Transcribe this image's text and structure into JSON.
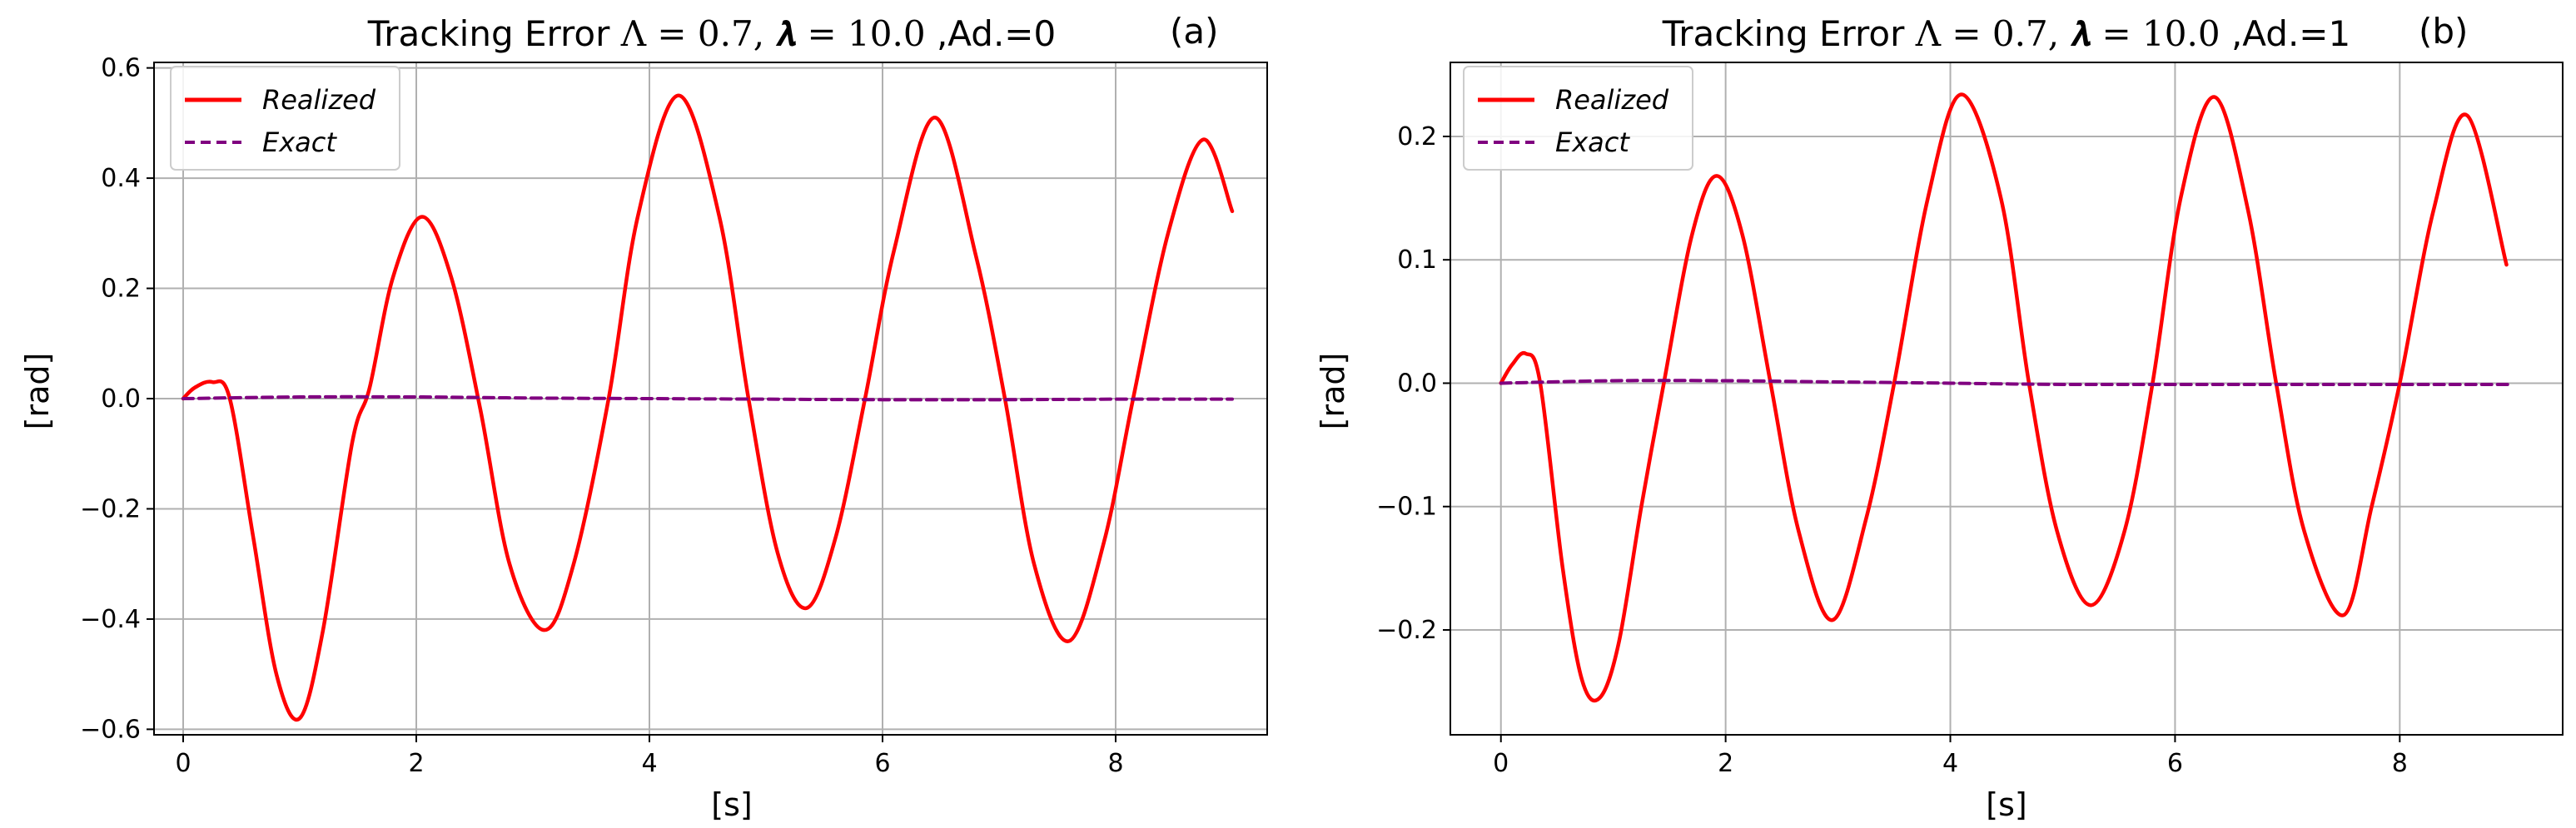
{
  "colors": {
    "realized": "#ff0000",
    "exact": "#800080",
    "grid": "#b0b0b0",
    "axis": "#000000"
  },
  "chart_data": [
    {
      "type": "line",
      "title_prefix": "Tracking Error ",
      "title_math": "Λ = 0.7, 𝝀 = 10.0",
      "title_suffix": " ,Ad.=0",
      "panel_label": "(a)",
      "xlabel": "[s]",
      "ylabel": "[rad]",
      "xlim": [
        -0.25,
        9.3
      ],
      "ylim": [
        -0.61,
        0.61
      ],
      "xticks": [
        0,
        2,
        4,
        6,
        8
      ],
      "xtick_labels": [
        "0",
        "2",
        "4",
        "6",
        "8"
      ],
      "yticks": [
        -0.6,
        -0.4,
        -0.2,
        0.0,
        0.2,
        0.4,
        0.6
      ],
      "ytick_labels": [
        "−0.6",
        "−0.4",
        "−0.2",
        "0.0",
        "0.2",
        "0.4",
        "0.6"
      ],
      "grid": true,
      "legend_position": "top-left",
      "series": [
        {
          "name": "Realized",
          "style": "solid",
          "x": [
            0,
            0.1,
            0.25,
            0.4,
            0.6,
            0.8,
            1.0,
            1.2,
            1.45,
            1.6,
            1.8,
            2.05,
            2.3,
            2.55,
            2.8,
            3.1,
            3.35,
            3.65,
            3.9,
            4.25,
            4.6,
            4.85,
            5.1,
            5.35,
            5.6,
            5.85,
            6.1,
            6.45,
            6.8,
            7.05,
            7.3,
            7.6,
            7.9,
            8.15,
            8.45,
            8.75,
            9.0
          ],
          "values": [
            0.0,
            0.02,
            0.03,
            0.0,
            -0.25,
            -0.5,
            -0.58,
            -0.42,
            -0.08,
            0.02,
            0.22,
            0.33,
            0.22,
            -0.02,
            -0.3,
            -0.42,
            -0.3,
            0.0,
            0.33,
            0.55,
            0.33,
            0.0,
            -0.28,
            -0.38,
            -0.25,
            0.0,
            0.27,
            0.51,
            0.26,
            0.0,
            -0.3,
            -0.44,
            -0.26,
            0.0,
            0.3,
            0.47,
            0.34
          ]
        },
        {
          "name": "Exact",
          "style": "dashed",
          "x": [
            0,
            1,
            2,
            3,
            4,
            5,
            6,
            7,
            8,
            9.0
          ],
          "values": [
            0.0,
            0.003,
            0.003,
            0.001,
            0.0,
            -0.001,
            -0.002,
            -0.002,
            -0.001,
            -0.001
          ]
        }
      ]
    },
    {
      "type": "line",
      "title_prefix": "Tracking Error ",
      "title_math": "Λ = 0.7, 𝝀 = 10.0",
      "title_suffix": " ,Ad.=1",
      "panel_label": "(b)",
      "xlabel": "[s]",
      "ylabel": "[rad]",
      "xlim": [
        -0.45,
        9.45
      ],
      "ylim": [
        -0.285,
        0.26
      ],
      "xticks": [
        0,
        2,
        4,
        6,
        8
      ],
      "xtick_labels": [
        "0",
        "2",
        "4",
        "6",
        "8"
      ],
      "yticks": [
        -0.2,
        -0.1,
        0.0,
        0.1,
        0.2
      ],
      "ytick_labels": [
        "−0.2",
        "−0.1",
        "0.0",
        "0.1",
        "0.2"
      ],
      "grid": true,
      "legend_position": "top-left",
      "series": [
        {
          "name": "Realized",
          "style": "solid",
          "x": [
            0,
            0.1,
            0.22,
            0.35,
            0.55,
            0.72,
            0.88,
            1.05,
            1.25,
            1.45,
            1.7,
            1.92,
            2.15,
            2.4,
            2.65,
            2.95,
            3.25,
            3.5,
            3.8,
            4.1,
            4.45,
            4.7,
            4.95,
            5.25,
            5.55,
            5.8,
            6.05,
            6.35,
            6.65,
            6.9,
            7.15,
            7.5,
            7.75,
            8.0,
            8.3,
            8.6,
            8.95
          ],
          "values": [
            0.0,
            0.015,
            0.024,
            0.0,
            -0.15,
            -0.24,
            -0.255,
            -0.21,
            -0.1,
            0.0,
            0.12,
            0.168,
            0.12,
            0.0,
            -0.12,
            -0.192,
            -0.11,
            0.0,
            0.15,
            0.234,
            0.15,
            0.0,
            -0.12,
            -0.18,
            -0.12,
            0.0,
            0.15,
            0.232,
            0.14,
            0.0,
            -0.12,
            -0.188,
            -0.1,
            0.0,
            0.14,
            0.217,
            0.096
          ]
        },
        {
          "name": "Exact",
          "style": "dashed",
          "x": [
            0,
            1,
            2,
            3,
            4,
            5,
            6,
            7,
            8,
            9.0
          ],
          "values": [
            0.0,
            0.002,
            0.002,
            0.001,
            0.0,
            -0.001,
            -0.001,
            -0.001,
            -0.001,
            -0.001
          ]
        }
      ]
    }
  ]
}
